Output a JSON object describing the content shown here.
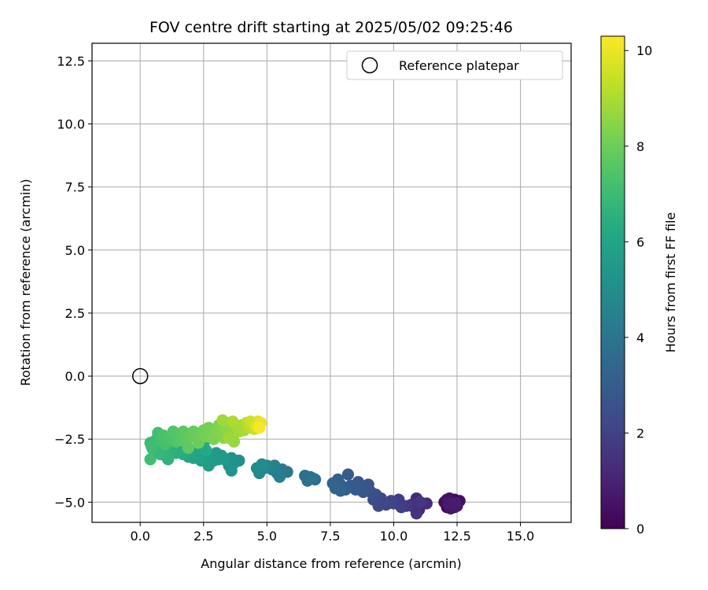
{
  "chart_data": {
    "type": "scatter",
    "title": "FOV centre drift starting at 2025/05/02 09:25:46",
    "xlabel": "Angular distance from reference (arcmin)",
    "ylabel": "Rotation from reference (arcmin)",
    "xlim": [
      -1.9,
      17.0
    ],
    "ylim": [
      -5.8,
      13.2
    ],
    "x_ticks": [
      0.0,
      2.5,
      5.0,
      7.5,
      10.0,
      12.5,
      15.0
    ],
    "x_tick_labels": [
      "0.0",
      "2.5",
      "5.0",
      "7.5",
      "10.0",
      "12.5",
      "15.0"
    ],
    "y_ticks": [
      -5.0,
      -2.5,
      0.0,
      2.5,
      5.0,
      7.5,
      10.0,
      12.5
    ],
    "y_tick_labels": [
      "−5.0",
      "−2.5",
      "0.0",
      "2.5",
      "5.0",
      "7.5",
      "10.0",
      "12.5"
    ],
    "grid": true,
    "legend": {
      "placement": "upper-right",
      "entries": [
        "Reference platepar"
      ]
    },
    "reference_point": {
      "x": 0.0,
      "y": 0.0,
      "label": "Reference platepar"
    },
    "colorbar": {
      "label": "Hours from first FF file",
      "colormap": "viridis",
      "range": [
        0,
        10.3
      ],
      "ticks": [
        0,
        2,
        4,
        6,
        8,
        10
      ],
      "tick_labels": [
        "0",
        "2",
        "4",
        "6",
        "8",
        "10"
      ]
    },
    "series": [
      {
        "points": [
          [
            12.2,
            -5.05,
            0.05
          ],
          [
            12.4,
            -4.9,
            0.1
          ],
          [
            12.1,
            -5.2,
            0.15
          ],
          [
            12.5,
            -5.0,
            0.2
          ],
          [
            12.3,
            -5.15,
            0.25
          ],
          [
            12.0,
            -5.0,
            0.3
          ],
          [
            12.6,
            -4.95,
            0.35
          ],
          [
            12.2,
            -4.85,
            0.4
          ],
          [
            12.4,
            -5.2,
            0.45
          ],
          [
            12.1,
            -4.9,
            0.5
          ],
          [
            12.35,
            -5.1,
            0.55
          ],
          [
            12.25,
            -5.25,
            0.6
          ],
          [
            12.5,
            -5.15,
            0.7
          ],
          [
            12.15,
            -5.05,
            0.75
          ],
          [
            12.45,
            -5.05,
            0.8
          ],
          [
            11.1,
            -5.1,
            1.0
          ],
          [
            11.0,
            -5.3,
            1.1
          ],
          [
            10.9,
            -4.85,
            1.2
          ],
          [
            11.3,
            -5.05,
            1.3
          ],
          [
            10.8,
            -5.2,
            1.4
          ],
          [
            10.9,
            -5.45,
            1.5
          ],
          [
            10.7,
            -5.1,
            1.55
          ],
          [
            11.05,
            -5.0,
            1.6
          ],
          [
            10.5,
            -5.15,
            1.7
          ],
          [
            10.2,
            -4.9,
            1.8
          ],
          [
            10.3,
            -5.2,
            1.9
          ],
          [
            10.0,
            -5.05,
            2.0
          ],
          [
            9.9,
            -4.95,
            2.05
          ],
          [
            9.7,
            -5.1,
            2.1
          ],
          [
            9.6,
            -5.0,
            2.2
          ],
          [
            9.5,
            -4.85,
            2.25
          ],
          [
            9.4,
            -5.15,
            2.3
          ],
          [
            9.2,
            -4.9,
            2.4
          ],
          [
            9.3,
            -4.7,
            2.45
          ],
          [
            9.1,
            -4.6,
            2.5
          ],
          [
            8.9,
            -4.5,
            2.6
          ],
          [
            9.0,
            -4.3,
            2.65
          ],
          [
            8.8,
            -4.6,
            2.7
          ],
          [
            8.7,
            -4.4,
            2.75
          ],
          [
            8.6,
            -4.2,
            2.8
          ],
          [
            8.5,
            -4.5,
            2.85
          ],
          [
            8.3,
            -4.35,
            2.9
          ],
          [
            8.2,
            -3.9,
            2.95
          ],
          [
            8.1,
            -4.5,
            3.0
          ],
          [
            7.9,
            -4.3,
            3.05
          ],
          [
            7.8,
            -4.1,
            3.1
          ],
          [
            7.7,
            -4.45,
            3.2
          ],
          [
            7.6,
            -4.25,
            3.3
          ],
          [
            7.9,
            -4.55,
            3.35
          ],
          [
            6.9,
            -4.1,
            3.5
          ],
          [
            6.7,
            -4.0,
            3.6
          ],
          [
            6.5,
            -3.95,
            3.7
          ],
          [
            6.6,
            -4.15,
            3.8
          ],
          [
            6.8,
            -4.05,
            3.9
          ],
          [
            5.8,
            -3.8,
            4.1
          ],
          [
            5.6,
            -3.7,
            4.2
          ],
          [
            5.4,
            -3.85,
            4.3
          ],
          [
            5.5,
            -4.0,
            4.35
          ],
          [
            5.3,
            -3.55,
            4.4
          ],
          [
            5.2,
            -3.7,
            4.5
          ],
          [
            5.0,
            -3.55,
            4.6
          ],
          [
            4.9,
            -3.65,
            4.7
          ],
          [
            4.7,
            -3.85,
            4.8
          ],
          [
            4.6,
            -3.65,
            4.9
          ],
          [
            4.8,
            -3.5,
            5.0
          ],
          [
            3.9,
            -3.35,
            5.1
          ],
          [
            3.7,
            -3.45,
            5.15
          ],
          [
            3.6,
            -3.25,
            5.2
          ],
          [
            3.5,
            -3.55,
            5.25
          ],
          [
            3.4,
            -3.35,
            5.3
          ],
          [
            3.6,
            -3.75,
            5.35
          ],
          [
            3.2,
            -3.15,
            5.4
          ],
          [
            3.1,
            -3.3,
            5.45
          ],
          [
            3.0,
            -3.05,
            5.5
          ],
          [
            2.9,
            -3.35,
            5.55
          ],
          [
            3.3,
            -3.25,
            5.6
          ],
          [
            2.8,
            -3.4,
            5.65
          ],
          [
            2.7,
            -3.55,
            5.7
          ],
          [
            2.6,
            -3.2,
            5.75
          ],
          [
            2.5,
            -3.05,
            5.8
          ],
          [
            2.4,
            -3.35,
            5.85
          ],
          [
            2.2,
            -3.1,
            5.9
          ],
          [
            2.1,
            -3.25,
            5.95
          ],
          [
            2.0,
            -3.0,
            6.0
          ],
          [
            1.9,
            -3.2,
            6.05
          ],
          [
            1.8,
            -3.05,
            6.1
          ],
          [
            2.3,
            -2.85,
            6.15
          ],
          [
            2.5,
            -2.7,
            6.2
          ],
          [
            2.6,
            -2.95,
            6.25
          ],
          [
            1.7,
            -3.1,
            6.3
          ],
          [
            1.6,
            -2.95,
            6.35
          ],
          [
            1.5,
            -2.9,
            6.4
          ],
          [
            1.4,
            -3.05,
            6.45
          ],
          [
            1.3,
            -2.8,
            6.5
          ],
          [
            1.2,
            -3.1,
            6.55
          ],
          [
            1.1,
            -3.3,
            6.6
          ],
          [
            1.0,
            -3.15,
            6.65
          ],
          [
            0.9,
            -2.95,
            6.7
          ],
          [
            0.8,
            -3.1,
            6.75
          ],
          [
            0.7,
            -2.85,
            6.8
          ],
          [
            0.6,
            -3.05,
            6.85
          ],
          [
            0.5,
            -2.9,
            6.9
          ],
          [
            0.4,
            -2.65,
            6.95
          ],
          [
            0.6,
            -2.55,
            7.0
          ],
          [
            0.45,
            -2.8,
            7.05
          ],
          [
            0.4,
            -3.3,
            7.1
          ],
          [
            0.7,
            -2.25,
            7.15
          ],
          [
            0.8,
            -2.55,
            7.2
          ],
          [
            1.0,
            -2.7,
            7.25
          ],
          [
            1.2,
            -2.5,
            7.3
          ],
          [
            0.9,
            -2.35,
            7.35
          ],
          [
            1.1,
            -2.4,
            7.4
          ],
          [
            1.4,
            -2.6,
            7.45
          ],
          [
            1.3,
            -2.2,
            7.5
          ],
          [
            1.5,
            -2.35,
            7.55
          ],
          [
            1.6,
            -2.55,
            7.6
          ],
          [
            1.7,
            -2.2,
            7.65
          ],
          [
            1.8,
            -2.6,
            7.7
          ],
          [
            1.9,
            -2.85,
            7.75
          ],
          [
            2.0,
            -2.4,
            7.8
          ],
          [
            2.1,
            -2.2,
            7.85
          ],
          [
            2.2,
            -2.45,
            7.9
          ],
          [
            2.3,
            -2.65,
            7.95
          ],
          [
            2.4,
            -2.3,
            8.0
          ],
          [
            2.5,
            -2.15,
            8.05
          ],
          [
            2.6,
            -2.4,
            8.1
          ],
          [
            2.7,
            -2.05,
            8.15
          ],
          [
            2.8,
            -2.3,
            8.2
          ],
          [
            2.9,
            -2.5,
            8.25
          ],
          [
            3.0,
            -2.2,
            8.3
          ],
          [
            3.1,
            -1.95,
            8.35
          ],
          [
            3.2,
            -2.25,
            8.4
          ],
          [
            3.3,
            -2.45,
            8.45
          ],
          [
            3.4,
            -2.1,
            8.5
          ],
          [
            3.5,
            -1.85,
            8.55
          ],
          [
            3.6,
            -2.3,
            8.6
          ],
          [
            3.7,
            -2.6,
            8.65
          ],
          [
            3.8,
            -2.05,
            8.7
          ],
          [
            3.5,
            -2.45,
            8.75
          ],
          [
            3.25,
            -1.75,
            8.8
          ],
          [
            3.9,
            -2.2,
            8.85
          ],
          [
            4.0,
            -1.95,
            8.9
          ],
          [
            4.1,
            -2.15,
            8.95
          ],
          [
            3.65,
            -1.8,
            9.0
          ],
          [
            4.2,
            -1.85,
            9.1
          ],
          [
            4.3,
            -2.05,
            9.2
          ],
          [
            4.4,
            -1.9,
            9.3
          ],
          [
            4.5,
            -2.1,
            9.4
          ],
          [
            4.35,
            -1.8,
            9.5
          ],
          [
            4.55,
            -1.95,
            9.6
          ],
          [
            4.65,
            -1.8,
            9.7
          ],
          [
            4.6,
            -2.0,
            9.8
          ],
          [
            4.7,
            -1.9,
            9.9
          ],
          [
            4.75,
            -1.85,
            10.0
          ],
          [
            4.7,
            -2.05,
            10.2
          ]
        ]
      }
    ]
  }
}
